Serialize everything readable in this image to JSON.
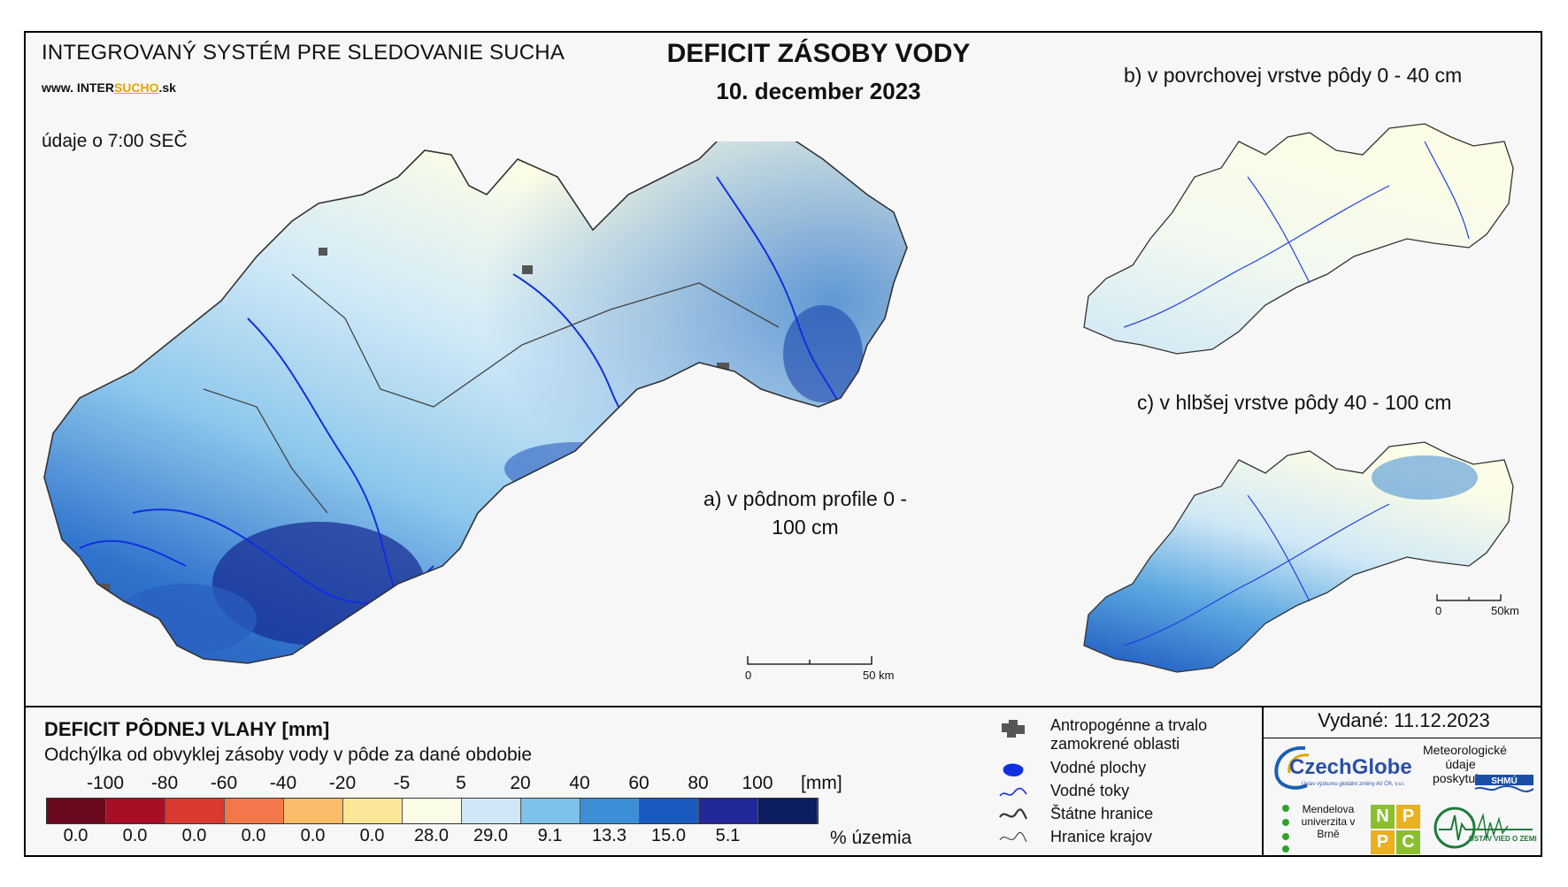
{
  "header": {
    "system_title": "INTEGROVANÝ SYSTÉM PRE SLEDOVANIE SUCHA",
    "website_prefix": "www. INTER",
    "website_highlight": "SUCHO",
    "website_suffix": ".sk",
    "time_note": "údaje o 7:00 SEČ",
    "main_title": "DEFICIT ZÁSOBY VODY",
    "date": "10. december 2023"
  },
  "maps": {
    "a_label": "a) v pôdnom profile 0 - 100 cm",
    "b_label": "b) v povrchovej vrstve pôdy 0 - 40 cm",
    "c_label": "c) v hlbšej vrstve pôdy 40 - 100 cm",
    "scalebar_main_start": "0",
    "scalebar_main_end": "50 km",
    "scalebar_small_start": "0",
    "scalebar_small_end": "50km"
  },
  "legend": {
    "title": "DEFICIT PÔDNEJ VLAHY [mm]",
    "subtitle": "Odchýlka od obvyklej zásoby vody v pôde za dané obdobie",
    "class_breaks": [
      "-100",
      "-80",
      "-60",
      "-40",
      "-20",
      "-5",
      "5",
      "20",
      "40",
      "60",
      "80",
      "100"
    ],
    "unit": "[mm]",
    "colors": [
      "#6b0a1e",
      "#a80f26",
      "#d93a2f",
      "#f2784b",
      "#fbbd6a",
      "#fbe697",
      "#fcfde6",
      "#cfe7f6",
      "#7cc2ea",
      "#3c8fd6",
      "#1a5bbf",
      "#22289a",
      "#0c1e61"
    ],
    "percentages": [
      "0.0",
      "0.0",
      "0.0",
      "0.0",
      "0.0",
      "0.0",
      "28.0",
      "29.0",
      "9.1",
      "13.3",
      "15.0",
      "5.1",
      ""
    ],
    "percent_unit": "% územia"
  },
  "symbols": {
    "urban": "Antropogénne a trvalo zamokrené oblasti",
    "water_bodies": "Vodné plochy",
    "rivers": "Vodné toky",
    "state_border": "Štátne hranice",
    "region_border": "Hranice krajov"
  },
  "footer": {
    "issued": "Vydané: 11.12.2023",
    "czechglobe": "CzechGlobe",
    "czechglobe_sub": "Ústav výzkumu globální změny AV ČR, v.v.i.",
    "meteo_note": "Meteorologické údaje poskytuje:",
    "shmu": "SHMÚ",
    "mendel": "Mendelova univerzita v Brně",
    "npc": [
      "N",
      "P",
      "P",
      "C"
    ],
    "uvz": "ÚSTAV VIED O ZEMI"
  }
}
